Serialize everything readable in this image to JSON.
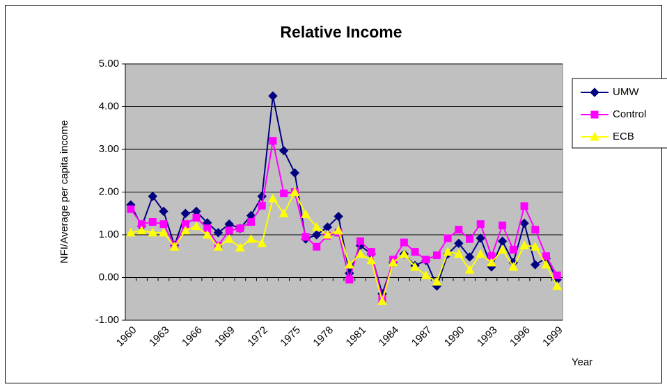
{
  "chart_data": {
    "type": "line",
    "title": "Relative Income",
    "x_label": "Year",
    "y_label": "NFI/Average per capita income",
    "categories": [
      "1960",
      null,
      null,
      "1963",
      null,
      null,
      "1966",
      null,
      null,
      "1969",
      null,
      null,
      "1972",
      null,
      null,
      "1975",
      null,
      null,
      "1978",
      null,
      null,
      "1981",
      null,
      null,
      "1984",
      null,
      null,
      "1987",
      null,
      null,
      "1990",
      null,
      null,
      "1993",
      null,
      null,
      "1996",
      null,
      null,
      "1999"
    ],
    "series": [
      {
        "name": "UMW",
        "color": "#000080",
        "marker": "diamond",
        "values": [
          1.7,
          1.2,
          1.9,
          1.55,
          0.75,
          1.5,
          1.55,
          1.28,
          1.05,
          1.25,
          1.15,
          1.45,
          1.9,
          4.25,
          2.97,
          2.45,
          0.9,
          1.0,
          1.18,
          1.43,
          0.1,
          0.75,
          0.55,
          -0.38,
          0.35,
          0.55,
          0.28,
          0.4,
          -0.2,
          0.55,
          0.8,
          0.48,
          0.92,
          0.25,
          0.85,
          0.35,
          1.27,
          0.3,
          0.45,
          -0.05
        ]
      },
      {
        "name": "Control",
        "color": "#ff00ff",
        "marker": "square",
        "values": [
          1.6,
          1.25,
          1.3,
          1.25,
          0.75,
          1.25,
          1.4,
          1.15,
          0.75,
          1.1,
          1.15,
          1.3,
          1.68,
          3.2,
          1.97,
          2.0,
          0.95,
          0.72,
          0.98,
          1.05,
          -0.05,
          0.85,
          0.6,
          -0.5,
          0.42,
          0.82,
          0.6,
          0.42,
          0.52,
          0.92,
          1.12,
          0.9,
          1.25,
          0.5,
          1.22,
          0.65,
          1.67,
          1.12,
          0.5,
          0.05
        ]
      },
      {
        "name": "ECB",
        "color": "#ffff00",
        "marker": "triangle",
        "values": [
          1.05,
          1.1,
          1.05,
          1.05,
          0.72,
          1.1,
          1.2,
          1.0,
          0.72,
          0.9,
          0.7,
          0.9,
          0.8,
          1.85,
          1.5,
          2.0,
          1.48,
          1.18,
          1.0,
          1.1,
          0.3,
          0.55,
          0.4,
          -0.55,
          0.35,
          0.55,
          0.25,
          0.05,
          -0.1,
          0.6,
          0.55,
          0.18,
          0.55,
          0.35,
          0.65,
          0.25,
          0.75,
          0.72,
          0.3,
          -0.2
        ]
      }
    ],
    "ylim": [
      -1,
      5
    ],
    "yticks": [
      {
        "value": -1,
        "label": "-1.00"
      },
      {
        "value": 0,
        "label": "0.00"
      },
      {
        "value": 1,
        "label": "1.00"
      },
      {
        "value": 2,
        "label": "2.00"
      },
      {
        "value": 3,
        "label": "3.00"
      },
      {
        "value": 4,
        "label": "4.00"
      },
      {
        "value": 5,
        "label": "5.00"
      }
    ],
    "grid": true,
    "legend": "right",
    "plot_background": "#c0c0c0"
  }
}
